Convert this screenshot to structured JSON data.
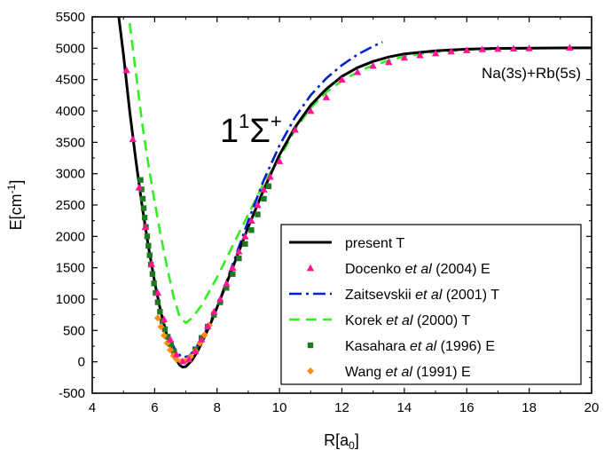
{
  "chart_data": {
    "type": "line",
    "xlabel": "R[a",
    "xlabel_sub": "0",
    "xlabel_end": "]",
    "ylabel": "E[cm",
    "ylabel_sup": "-1",
    "ylabel_end": "]",
    "xlim": [
      4,
      20
    ],
    "ylim": [
      -500,
      5500
    ],
    "xticks": [
      4,
      6,
      8,
      10,
      12,
      14,
      16,
      18,
      20
    ],
    "yticks": [
      -500,
      0,
      500,
      1000,
      1500,
      2000,
      2500,
      3000,
      3500,
      4000,
      4500,
      5000,
      5500
    ],
    "annotations": {
      "state_main": "1",
      "state_sup": "1",
      "state_sigma": "Σ",
      "state_plus": "+",
      "asymptote": "Na(3s)+Rb(5s)"
    },
    "legend_position": "lower-right",
    "series": [
      {
        "name": "present T",
        "name_parts": [
          {
            "t": "present T",
            "i": false
          }
        ],
        "kind": "line",
        "color": "#000000",
        "dash": "",
        "points": [
          [
            4.85,
            5500
          ],
          [
            5.0,
            4900
          ],
          [
            5.2,
            4000
          ],
          [
            5.4,
            3200
          ],
          [
            5.6,
            2480
          ],
          [
            5.8,
            1840
          ],
          [
            6.0,
            1270
          ],
          [
            6.2,
            790
          ],
          [
            6.4,
            400
          ],
          [
            6.6,
            120
          ],
          [
            6.8,
            -50
          ],
          [
            6.9,
            -85
          ],
          [
            7.0,
            -75
          ],
          [
            7.2,
            25
          ],
          [
            7.4,
            190
          ],
          [
            7.6,
            400
          ],
          [
            7.8,
            620
          ],
          [
            8.0,
            870
          ],
          [
            8.5,
            1500
          ],
          [
            9.0,
            2150
          ],
          [
            9.5,
            2750
          ],
          [
            10.0,
            3300
          ],
          [
            10.5,
            3740
          ],
          [
            11.0,
            4090
          ],
          [
            11.5,
            4350
          ],
          [
            12.0,
            4550
          ],
          [
            12.5,
            4690
          ],
          [
            13.0,
            4790
          ],
          [
            13.5,
            4860
          ],
          [
            14.0,
            4910
          ],
          [
            15.0,
            4960
          ],
          [
            16.0,
            4985
          ],
          [
            17.0,
            4997
          ],
          [
            18.0,
            5002
          ],
          [
            19.0,
            5005
          ],
          [
            20.0,
            5006
          ]
        ]
      },
      {
        "name": "Docenko et al (2004) E",
        "name_parts": [
          {
            "t": "Docenko ",
            "i": false
          },
          {
            "t": "et al",
            "i": true
          },
          {
            "t": " (2004) E",
            "i": false
          }
        ],
        "kind": "triangle",
        "color": "#ff1493",
        "points": [
          [
            5.1,
            4650
          ],
          [
            5.3,
            3550
          ],
          [
            5.5,
            2780
          ],
          [
            5.7,
            2150
          ],
          [
            5.9,
            1560
          ],
          [
            6.1,
            1100
          ],
          [
            6.3,
            680
          ],
          [
            6.5,
            360
          ],
          [
            6.7,
            120
          ],
          [
            6.9,
            10
          ],
          [
            7.1,
            40
          ],
          [
            7.3,
            170
          ],
          [
            7.5,
            360
          ],
          [
            7.7,
            570
          ],
          [
            7.9,
            800
          ],
          [
            8.1,
            1000
          ],
          [
            8.3,
            1250
          ],
          [
            8.5,
            1500
          ],
          [
            8.7,
            1760
          ],
          [
            8.9,
            2000
          ],
          [
            9.1,
            2250
          ],
          [
            9.3,
            2500
          ],
          [
            9.5,
            2750
          ],
          [
            9.7,
            2950
          ],
          [
            10.0,
            3200
          ],
          [
            10.5,
            3700
          ],
          [
            11.0,
            4000
          ],
          [
            11.5,
            4220
          ],
          [
            12.0,
            4500
          ],
          [
            12.5,
            4620
          ],
          [
            13.0,
            4720
          ],
          [
            13.5,
            4780
          ],
          [
            14.0,
            4850
          ],
          [
            14.5,
            4890
          ],
          [
            15.0,
            4920
          ],
          [
            15.5,
            4950
          ],
          [
            16.0,
            4970
          ],
          [
            16.5,
            4985
          ],
          [
            17.0,
            4990
          ],
          [
            17.5,
            4995
          ],
          [
            18.0,
            5000
          ],
          [
            19.3,
            5010
          ]
        ]
      },
      {
        "name": "Zaitsevskii et al (2001) T",
        "name_parts": [
          {
            "t": "Zaitsevskii ",
            "i": false
          },
          {
            "t": "et al",
            "i": true
          },
          {
            "t": " (2001) T",
            "i": false
          }
        ],
        "kind": "line",
        "color": "#0022cc",
        "dash": "14,5,3,5",
        "points": [
          [
            6.5,
            350
          ],
          [
            6.7,
            150
          ],
          [
            6.9,
            70
          ],
          [
            7.1,
            90
          ],
          [
            7.3,
            200
          ],
          [
            7.6,
            450
          ],
          [
            8.0,
            870
          ],
          [
            8.5,
            1550
          ],
          [
            9.0,
            2250
          ],
          [
            9.5,
            2900
          ],
          [
            10.0,
            3450
          ],
          [
            10.5,
            3900
          ],
          [
            11.0,
            4250
          ],
          [
            11.5,
            4520
          ],
          [
            12.0,
            4730
          ],
          [
            12.5,
            4900
          ],
          [
            13.0,
            5030
          ],
          [
            13.3,
            5100
          ]
        ]
      },
      {
        "name": "Korek et al (2000) T",
        "name_parts": [
          {
            "t": "Korek ",
            "i": false
          },
          {
            "t": "et al",
            "i": true
          },
          {
            "t": " (2000) T",
            "i": false
          }
        ],
        "kind": "line",
        "color": "#33ee22",
        "dash": "12,7",
        "points": [
          [
            5.2,
            5400
          ],
          [
            5.4,
            4600
          ],
          [
            5.6,
            3800
          ],
          [
            5.8,
            3150
          ],
          [
            6.0,
            2550
          ],
          [
            6.2,
            2000
          ],
          [
            6.4,
            1500
          ],
          [
            6.6,
            1050
          ],
          [
            6.8,
            720
          ],
          [
            7.0,
            620
          ],
          [
            7.2,
            700
          ],
          [
            7.5,
            900
          ],
          [
            8.0,
            1350
          ],
          [
            8.5,
            1850
          ],
          [
            9.0,
            2350
          ],
          [
            9.5,
            2850
          ],
          [
            10.0,
            3250
          ],
          [
            10.5,
            3700
          ],
          [
            11.0,
            4050
          ],
          [
            11.5,
            4300
          ],
          [
            12.0,
            4480
          ],
          [
            12.5,
            4620
          ],
          [
            13.0,
            4730
          ],
          [
            14.0,
            4870
          ],
          [
            15.0,
            4940
          ],
          [
            16.0,
            4975
          ],
          [
            17.0,
            4990
          ],
          [
            18.0,
            5000
          ],
          [
            19.0,
            5005
          ],
          [
            20.0,
            5007
          ]
        ]
      },
      {
        "name": "Kasahara et al (1996) E",
        "name_parts": [
          {
            "t": "Kasahara ",
            "i": false
          },
          {
            "t": "et al",
            "i": true
          },
          {
            "t": " (1996) E",
            "i": false
          }
        ],
        "kind": "square",
        "color": "#1e7a1e",
        "points": [
          [
            5.55,
            2900
          ],
          [
            5.58,
            2750
          ],
          [
            5.62,
            2600
          ],
          [
            5.65,
            2450
          ],
          [
            5.68,
            2300
          ],
          [
            5.72,
            2150
          ],
          [
            5.76,
            2000
          ],
          [
            5.8,
            1850
          ],
          [
            5.84,
            1700
          ],
          [
            5.88,
            1550
          ],
          [
            5.93,
            1400
          ],
          [
            5.98,
            1250
          ],
          [
            6.03,
            1100
          ],
          [
            6.1,
            950
          ],
          [
            6.17,
            800
          ],
          [
            6.25,
            650
          ],
          [
            6.33,
            520
          ],
          [
            6.42,
            400
          ],
          [
            6.52,
            280
          ],
          [
            6.62,
            170
          ],
          [
            7.3,
            200
          ],
          [
            7.5,
            380
          ],
          [
            7.7,
            560
          ],
          [
            7.9,
            750
          ],
          [
            8.1,
            950
          ],
          [
            8.3,
            1180
          ],
          [
            8.5,
            1400
          ],
          [
            8.7,
            1650
          ],
          [
            8.9,
            1880
          ],
          [
            9.1,
            2100
          ],
          [
            9.3,
            2350
          ],
          [
            9.5,
            2600
          ],
          [
            9.65,
            2800
          ]
        ]
      },
      {
        "name": "Wang et al (1991) E",
        "name_parts": [
          {
            "t": "Wang ",
            "i": false
          },
          {
            "t": "et al",
            "i": true
          },
          {
            "t": " (1991) E",
            "i": false
          }
        ],
        "kind": "diamond",
        "color": "#ff8c1a",
        "points": [
          [
            6.1,
            700
          ],
          [
            6.2,
            560
          ],
          [
            6.3,
            420
          ],
          [
            6.4,
            300
          ],
          [
            6.5,
            190
          ],
          [
            6.6,
            100
          ],
          [
            6.7,
            40
          ],
          [
            6.85,
            5
          ],
          [
            7.0,
            20
          ],
          [
            7.15,
            80
          ],
          [
            7.3,
            170
          ],
          [
            7.45,
            300
          ],
          [
            7.6,
            430
          ],
          [
            7.75,
            580
          ]
        ]
      }
    ]
  }
}
